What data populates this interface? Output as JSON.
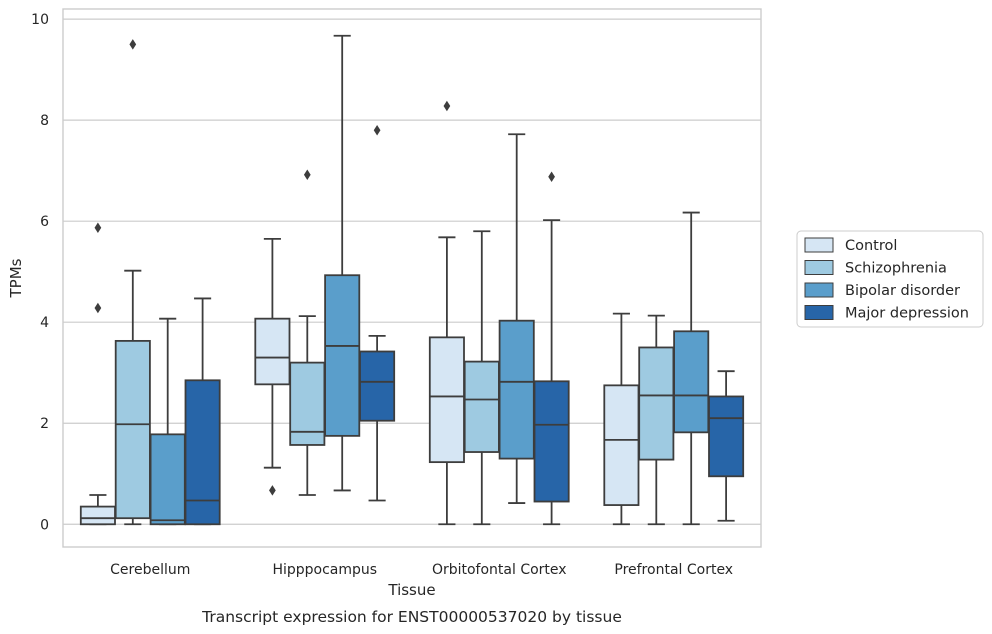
{
  "caption": "Transcript expression for ENST00000537020 by tissue",
  "chart_data": {
    "type": "box",
    "title": "",
    "xlabel": "Tissue",
    "ylabel": "TPMs",
    "ylim": [
      -0.45,
      10.2
    ],
    "yticks": [
      0,
      2,
      4,
      6,
      8,
      10
    ],
    "grid": "horizontal",
    "legend_position": "right",
    "categories": [
      "Cerebellum",
      "Hipppocampus",
      "Orbitofontal Cortex",
      "Prefrontal Cortex"
    ],
    "series": [
      {
        "name": "Control",
        "color": "#d6e6f4",
        "boxes": [
          {
            "whislo": 0.0,
            "q1": 0.0,
            "med": 0.12,
            "q3": 0.35,
            "whishi": 0.58,
            "fliers": [
              5.87,
              4.28
            ]
          },
          {
            "whislo": 1.12,
            "q1": 2.77,
            "med": 3.3,
            "q3": 4.07,
            "whishi": 5.65,
            "fliers": [
              0.67
            ]
          },
          {
            "whislo": 0.0,
            "q1": 1.23,
            "med": 2.53,
            "q3": 3.7,
            "whishi": 5.68,
            "fliers": [
              8.28
            ]
          },
          {
            "whislo": 0.0,
            "q1": 0.38,
            "med": 1.67,
            "q3": 2.75,
            "whishi": 4.17,
            "fliers": []
          }
        ]
      },
      {
        "name": "Schizophrenia",
        "color": "#9ecae1",
        "boxes": [
          {
            "whislo": 0.0,
            "q1": 0.12,
            "med": 1.98,
            "q3": 3.63,
            "whishi": 5.02,
            "fliers": [
              9.5
            ]
          },
          {
            "whislo": 0.58,
            "q1": 1.57,
            "med": 1.83,
            "q3": 3.2,
            "whishi": 4.12,
            "fliers": [
              6.92
            ]
          },
          {
            "whislo": 0.0,
            "q1": 1.43,
            "med": 2.47,
            "q3": 3.22,
            "whishi": 5.8,
            "fliers": []
          },
          {
            "whislo": 0.0,
            "q1": 1.28,
            "med": 2.55,
            "q3": 3.5,
            "whishi": 4.13,
            "fliers": []
          }
        ]
      },
      {
        "name": "Bipolar disorder",
        "color": "#5a9ecb",
        "boxes": [
          {
            "whislo": 0.0,
            "q1": 0.0,
            "med": 0.08,
            "q3": 1.78,
            "whishi": 4.07,
            "fliers": []
          },
          {
            "whislo": 0.67,
            "q1": 1.75,
            "med": 3.53,
            "q3": 4.93,
            "whishi": 9.67,
            "fliers": []
          },
          {
            "whislo": 0.42,
            "q1": 1.3,
            "med": 2.82,
            "q3": 4.03,
            "whishi": 7.72,
            "fliers": []
          },
          {
            "whislo": 0.0,
            "q1": 1.82,
            "med": 2.55,
            "q3": 3.82,
            "whishi": 6.17,
            "fliers": []
          }
        ]
      },
      {
        "name": "Major depression",
        "color": "#2765a8",
        "boxes": [
          {
            "whislo": 0.0,
            "q1": 0.0,
            "med": 0.47,
            "q3": 2.85,
            "whishi": 4.47,
            "fliers": []
          },
          {
            "whislo": 0.47,
            "q1": 2.05,
            "med": 2.82,
            "q3": 3.42,
            "whishi": 3.73,
            "fliers": [
              7.8
            ]
          },
          {
            "whislo": 0.0,
            "q1": 0.45,
            "med": 1.97,
            "q3": 2.83,
            "whishi": 6.02,
            "fliers": [
              6.88
            ]
          },
          {
            "whislo": 0.07,
            "q1": 0.95,
            "med": 2.1,
            "q3": 2.53,
            "whishi": 3.03,
            "fliers": []
          }
        ]
      }
    ]
  }
}
